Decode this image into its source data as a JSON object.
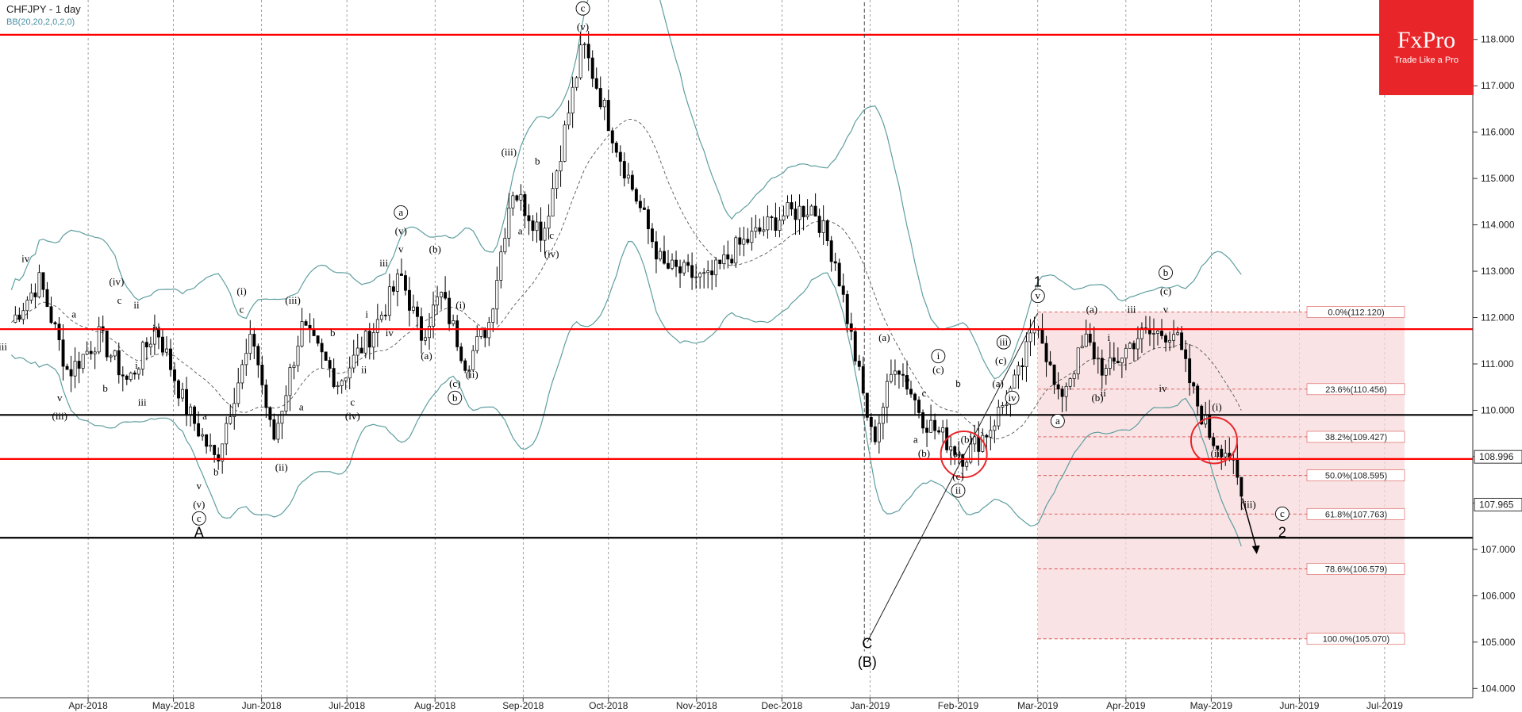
{
  "header": {
    "symbol": "CHFJPY - 1 day",
    "indicator": "BB(20,20,2,0,2,0)"
  },
  "logo": {
    "name": "FxPro",
    "tagline": "Trade Like a Pro",
    "color": "#e8262a"
  },
  "colors": {
    "resistance": "#ff0000",
    "support": "#000000",
    "bands": "#5f9ea0",
    "fibFill": "#f7d9dc",
    "fibLine": "#d9534f",
    "up": "#1a7f1a",
    "down": "#cc0000"
  },
  "chart_data": {
    "type": "candlestick",
    "title": "CHFJPY - 1 day",
    "y_ticks": [
      104,
      105,
      106,
      107,
      108,
      109,
      110,
      111,
      112,
      113,
      114,
      115,
      116,
      117,
      118
    ],
    "ylim": [
      103.8,
      118.85
    ],
    "x_ticks": [
      {
        "label": "Apr-2018",
        "date": "2018-04-01"
      },
      {
        "label": "May-2018",
        "date": "2018-05-01"
      },
      {
        "label": "Jun-2018",
        "date": "2018-06-01"
      },
      {
        "label": "Jul-2018",
        "date": "2018-07-01"
      },
      {
        "label": "Aug-2018",
        "date": "2018-08-01"
      },
      {
        "label": "Sep-2018",
        "date": "2018-09-01"
      },
      {
        "label": "Oct-2018",
        "date": "2018-10-01"
      },
      {
        "label": "Nov-2018",
        "date": "2018-11-01"
      },
      {
        "label": "Dec-2018",
        "date": "2018-12-01"
      },
      {
        "label": "Jan-2019",
        "date": "2019-01-01"
      },
      {
        "label": "Feb-2019",
        "date": "2019-02-01"
      },
      {
        "label": "Mar-2019",
        "date": "2019-03-01"
      },
      {
        "label": "Apr-2019",
        "date": "2019-04-01"
      },
      {
        "label": "May-2019",
        "date": "2019-05-01"
      },
      {
        "label": "Jun-2019",
        "date": "2019-06-01"
      },
      {
        "label": "Jul-2019",
        "date": "2019-07-01"
      }
    ],
    "grid": true,
    "current_price": "108.996",
    "second_price": "107.965",
    "price_path": [
      [
        "2018-03-05",
        111.9
      ],
      [
        "2018-03-15",
        112.8
      ],
      [
        "2018-03-25",
        110.8
      ],
      [
        "2018-04-05",
        111.6
      ],
      [
        "2018-04-15",
        110.6
      ],
      [
        "2018-04-25",
        111.8
      ],
      [
        "2018-05-05",
        110.1
      ],
      [
        "2018-05-16",
        108.9
      ],
      [
        "2018-05-22",
        110.3
      ],
      [
        "2018-05-29",
        111.6
      ],
      [
        "2018-06-05",
        109.3
      ],
      [
        "2018-06-15",
        111.8
      ],
      [
        "2018-06-28",
        110.6
      ],
      [
        "2018-07-10",
        111.7
      ],
      [
        "2018-07-20",
        112.9
      ],
      [
        "2018-07-27",
        111.6
      ],
      [
        "2018-08-03",
        112.5
      ],
      [
        "2018-08-12",
        111.0
      ],
      [
        "2018-08-20",
        111.9
      ],
      [
        "2018-08-28",
        114.8
      ],
      [
        "2018-09-08",
        113.8
      ],
      [
        "2018-09-22",
        117.9
      ],
      [
        "2018-10-05",
        115.5
      ],
      [
        "2018-10-20",
        113.1
      ],
      [
        "2018-11-05",
        112.8
      ],
      [
        "2018-11-15",
        113.5
      ],
      [
        "2018-12-01",
        114.2
      ],
      [
        "2018-12-12",
        114.4
      ],
      [
        "2018-12-20",
        113.2
      ],
      [
        "2019-01-02",
        109.3
      ],
      [
        "2019-01-10",
        111.1
      ],
      [
        "2019-01-20",
        109.8
      ],
      [
        "2019-02-03",
        109.0
      ],
      [
        "2019-02-12",
        109.6
      ],
      [
        "2019-02-22",
        110.7
      ],
      [
        "2019-03-01",
        112.0
      ],
      [
        "2019-03-08",
        110.2
      ],
      [
        "2019-03-18",
        111.5
      ],
      [
        "2019-03-25",
        110.8
      ],
      [
        "2019-04-05",
        111.6
      ],
      [
        "2019-04-18",
        111.7
      ],
      [
        "2019-04-25",
        110.3
      ],
      [
        "2019-05-01",
        109.4
      ],
      [
        "2019-05-07",
        109.1
      ],
      [
        "2019-05-12",
        108.0
      ]
    ],
    "horizontal_levels": [
      {
        "price": 118.1,
        "kind": "resistance"
      },
      {
        "price": 111.75,
        "kind": "resistance"
      },
      {
        "price": 109.9,
        "kind": "support"
      },
      {
        "price": 108.95,
        "kind": "resistance"
      },
      {
        "price": 107.25,
        "kind": "support"
      }
    ],
    "fibonacci": {
      "start": "2019-03-01",
      "end": "2019-07-08",
      "levels": [
        {
          "label": "0.0%(112.120)",
          "price": 112.12
        },
        {
          "label": "23.6%(110.456)",
          "price": 110.456
        },
        {
          "label": "38.2%(109.427)",
          "price": 109.427
        },
        {
          "label": "50.0%(108.595)",
          "price": 108.595
        },
        {
          "label": "61.8%(107.763)",
          "price": 107.763
        },
        {
          "label": "78.6%(106.579)",
          "price": 106.579
        },
        {
          "label": "100.0%(105.070)",
          "price": 105.07
        }
      ]
    },
    "circles": [
      {
        "date": "2019-02-03",
        "price": 109.05
      },
      {
        "date": "2019-05-02",
        "price": 109.35
      }
    ],
    "trendline": [
      [
        "2018-12-31",
        105.0
      ],
      [
        "2019-03-01",
        112.1
      ]
    ],
    "forecast_arrow": [
      [
        "2019-05-12",
        108.1
      ],
      [
        "2019-05-17",
        107.0
      ]
    ],
    "annotations": [
      {
        "t": "iv",
        "d": "2018-03-10",
        "p": 113.2
      },
      {
        "t": "iii",
        "d": "2018-03-02",
        "p": 111.3
      },
      {
        "t": "a",
        "d": "2018-03-27",
        "p": 112.0
      },
      {
        "t": "v",
        "d": "2018-03-22",
        "p": 110.2
      },
      {
        "t": "(iii)",
        "d": "2018-03-22",
        "p": 109.8
      },
      {
        "t": "(iv)",
        "d": "2018-04-11",
        "p": 112.7
      },
      {
        "t": "c",
        "d": "2018-04-12",
        "p": 112.3
      },
      {
        "t": "ii",
        "d": "2018-04-18",
        "p": 112.2
      },
      {
        "t": "i",
        "d": "2018-04-18",
        "p": 110.9
      },
      {
        "t": "b",
        "d": "2018-04-07",
        "p": 110.4
      },
      {
        "t": "iv",
        "d": "2018-04-25",
        "p": 111.7
      },
      {
        "t": "iii",
        "d": "2018-04-20",
        "p": 110.1
      },
      {
        "t": "a",
        "d": "2018-05-12",
        "p": 109.8
      },
      {
        "t": "b",
        "d": "2018-05-16",
        "p": 108.6
      },
      {
        "t": "v",
        "d": "2018-05-10",
        "p": 108.3
      },
      {
        "t": "(v)",
        "d": "2018-05-10",
        "p": 107.9
      },
      {
        "t": "c",
        "d": "2018-05-10",
        "p": 107.6,
        "c": 1
      },
      {
        "t": "A",
        "d": "2018-05-10",
        "p": 107.3,
        "big": 1
      },
      {
        "t": "(i)",
        "d": "2018-05-25",
        "p": 112.5
      },
      {
        "t": "c",
        "d": "2018-05-25",
        "p": 112.1
      },
      {
        "t": "(ii)",
        "d": "2018-06-08",
        "p": 108.7
      },
      {
        "t": "(iii)",
        "d": "2018-06-12",
        "p": 112.3
      },
      {
        "t": "a",
        "d": "2018-06-15",
        "p": 110.0
      },
      {
        "t": "b",
        "d": "2018-06-26",
        "p": 111.6
      },
      {
        "t": "c",
        "d": "2018-07-03",
        "p": 110.1
      },
      {
        "t": "(iv)",
        "d": "2018-07-03",
        "p": 109.8
      },
      {
        "t": "ii",
        "d": "2018-07-07",
        "p": 110.8
      },
      {
        "t": "i",
        "d": "2018-07-08",
        "p": 112.0
      },
      {
        "t": "iii",
        "d": "2018-07-14",
        "p": 113.1
      },
      {
        "t": "iv",
        "d": "2018-07-16",
        "p": 111.6
      },
      {
        "t": "v",
        "d": "2018-07-20",
        "p": 113.4
      },
      {
        "t": "(v)",
        "d": "2018-07-20",
        "p": 113.8
      },
      {
        "t": "a",
        "d": "2018-07-20",
        "p": 114.2,
        "c": 1
      },
      {
        "t": "(a)",
        "d": "2018-07-29",
        "p": 111.1
      },
      {
        "t": "(b)",
        "d": "2018-08-01",
        "p": 113.4
      },
      {
        "t": "(i)",
        "d": "2018-08-10",
        "p": 112.2
      },
      {
        "t": "(c)",
        "d": "2018-08-08",
        "p": 110.5
      },
      {
        "t": "b",
        "d": "2018-08-08",
        "p": 110.2,
        "c": 1
      },
      {
        "t": "(ii)",
        "d": "2018-08-14",
        "p": 110.7
      },
      {
        "t": "(iii)",
        "d": "2018-08-27",
        "p": 115.5
      },
      {
        "t": "a",
        "d": "2018-08-31",
        "p": 113.8
      },
      {
        "t": "b",
        "d": "2018-09-06",
        "p": 115.3
      },
      {
        "t": "c",
        "d": "2018-09-11",
        "p": 113.7
      },
      {
        "t": "(iv)",
        "d": "2018-09-11",
        "p": 113.3
      },
      {
        "t": "(v)",
        "d": "2018-09-22",
        "p": 118.2
      },
      {
        "t": "c",
        "d": "2018-09-22",
        "p": 118.6,
        "c": 1
      },
      {
        "t": "C",
        "d": "2018-12-31",
        "p": 104.9,
        "big": 1
      },
      {
        "t": "(B)",
        "d": "2018-12-31",
        "p": 104.5,
        "big": 1
      },
      {
        "t": "(a)",
        "d": "2019-01-06",
        "p": 111.5
      },
      {
        "t": "b",
        "d": "2019-01-14",
        "p": 110.6
      },
      {
        "t": "a",
        "d": "2019-01-17",
        "p": 109.3
      },
      {
        "t": "c",
        "d": "2019-01-20",
        "p": 110.3
      },
      {
        "t": "(b)",
        "d": "2019-01-20",
        "p": 109.0
      },
      {
        "t": "i",
        "d": "2019-01-25",
        "p": 111.1,
        "c": 1
      },
      {
        "t": "(c)",
        "d": "2019-01-25",
        "p": 110.8
      },
      {
        "t": "(a)",
        "d": "2019-01-31",
        "p": 109.0
      },
      {
        "t": "b",
        "d": "2019-02-01",
        "p": 110.5
      },
      {
        "t": "(b)",
        "d": "2019-02-04",
        "p": 109.3
      },
      {
        "t": "(c)",
        "d": "2019-02-01",
        "p": 108.5
      },
      {
        "t": "ii",
        "d": "2019-02-01",
        "p": 108.2,
        "c": 1
      },
      {
        "t": "(a)",
        "d": "2019-02-15",
        "p": 110.5
      },
      {
        "t": "iv",
        "d": "2019-02-20",
        "p": 110.2,
        "c": 1
      },
      {
        "t": "(c)",
        "d": "2019-02-16",
        "p": 111.0
      },
      {
        "t": "iii",
        "d": "2019-02-17",
        "p": 111.4,
        "c": 1
      },
      {
        "t": "1",
        "d": "2019-03-01",
        "p": 112.7,
        "big": 1
      },
      {
        "t": "v",
        "d": "2019-03-01",
        "p": 112.4,
        "c": 1
      },
      {
        "t": "a",
        "d": "2019-03-08",
        "p": 109.7,
        "c": 1
      },
      {
        "t": "(a)",
        "d": "2019-03-20",
        "p": 112.1
      },
      {
        "t": "(b)",
        "d": "2019-03-22",
        "p": 110.2
      },
      {
        "t": "ii",
        "d": "2019-03-24",
        "p": 110.3
      },
      {
        "t": "i",
        "d": "2019-03-26",
        "p": 111.5
      },
      {
        "t": "iii",
        "d": "2019-04-03",
        "p": 112.1
      },
      {
        "t": "iv",
        "d": "2019-04-14",
        "p": 110.4
      },
      {
        "t": "v",
        "d": "2019-04-15",
        "p": 112.1
      },
      {
        "t": "(c)",
        "d": "2019-04-15",
        "p": 112.5
      },
      {
        "t": "b",
        "d": "2019-04-15",
        "p": 112.9,
        "c": 1
      },
      {
        "t": "(i)",
        "d": "2019-05-03",
        "p": 110.0
      },
      {
        "t": "(ii)",
        "d": "2019-05-03",
        "p": 109.0
      },
      {
        "t": "(iii)",
        "d": "2019-05-14",
        "p": 107.9
      },
      {
        "t": "c",
        "d": "2019-05-26",
        "p": 107.7,
        "c": 1
      },
      {
        "t": "2",
        "d": "2019-05-26",
        "p": 107.3,
        "big": 1
      }
    ]
  }
}
